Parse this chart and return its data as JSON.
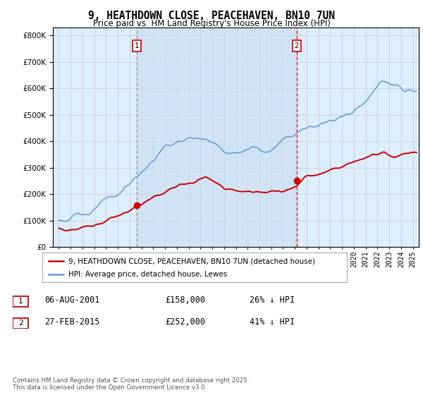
{
  "title": "9, HEATHDOWN CLOSE, PEACEHAVEN, BN10 7UN",
  "subtitle": "Price paid vs. HM Land Registry's House Price Index (HPI)",
  "legend_line1": "9, HEATHDOWN CLOSE, PEACEHAVEN, BN10 7UN (detached house)",
  "legend_line2": "HPI: Average price, detached house, Lewes",
  "marker1_date": "06-AUG-2001",
  "marker1_price": "£158,000",
  "marker1_hpi": "26% ↓ HPI",
  "marker1_year": 2001.6,
  "marker2_date": "27-FEB-2015",
  "marker2_price": "£252,000",
  "marker2_hpi": "41% ↓ HPI",
  "marker2_year": 2015.15,
  "footnote": "Contains HM Land Registry data © Crown copyright and database right 2025.\nThis data is licensed under the Open Government Licence v3.0.",
  "red_color": "#cc0000",
  "blue_color": "#6699cc",
  "blue_fill": "#ddeeff",
  "background_color": "#ddeeff",
  "vline1_color": "#888888",
  "vline2_color": "#cc0000",
  "ylim": [
    0,
    830000
  ],
  "xlim_start": 1994.5,
  "xlim_end": 2025.5
}
